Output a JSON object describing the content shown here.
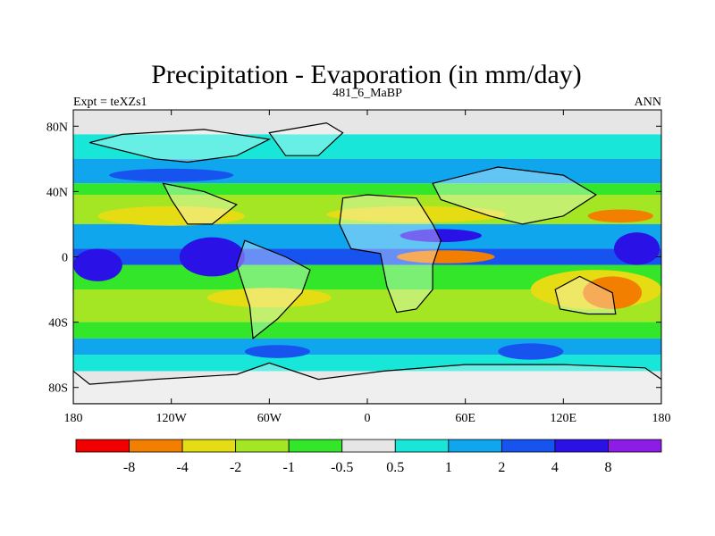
{
  "chart_data": {
    "type": "heatmap",
    "title": "Precipitation - Evaporation (in mm/day)",
    "left_label": "Expt = teXZs1",
    "center_label": "481_6_MaBP",
    "right_label": "ANN",
    "x_range": [
      -180,
      180
    ],
    "y_range": [
      -90,
      90
    ],
    "x_ticks": [
      {
        "value": -180,
        "label": "180"
      },
      {
        "value": -120,
        "label": "120W"
      },
      {
        "value": -60,
        "label": "60W"
      },
      {
        "value": 0,
        "label": "0"
      },
      {
        "value": 60,
        "label": "60E"
      },
      {
        "value": 120,
        "label": "120E"
      },
      {
        "value": 180,
        "label": "180"
      }
    ],
    "y_ticks": [
      {
        "value": 80,
        "label": "80N"
      },
      {
        "value": 40,
        "label": "40N"
      },
      {
        "value": 0,
        "label": "0"
      },
      {
        "value": -40,
        "label": "40S"
      },
      {
        "value": -80,
        "label": "80S"
      }
    ],
    "colorbar": {
      "colors": [
        "#f20000",
        "#f27f00",
        "#e6dc14",
        "#a4e623",
        "#34e62a",
        "#e6e6e6",
        "#18e6d8",
        "#0fa6ee",
        "#1753ee",
        "#2a12e6",
        "#8c1ce6"
      ],
      "labels": [
        "-8",
        "-4",
        "-2",
        "-1",
        "-0.5",
        "0.5",
        "1",
        "2",
        "4",
        "8"
      ]
    },
    "bands": [
      {
        "lat": [
          60,
          75
        ],
        "level": 6
      },
      {
        "lat": [
          45,
          60
        ],
        "level": 7
      },
      {
        "lat": [
          38,
          45
        ],
        "level": 4
      },
      {
        "lat": [
          20,
          38
        ],
        "level": 3
      },
      {
        "lat": [
          5,
          20
        ],
        "level": 7
      },
      {
        "lat": [
          -5,
          5
        ],
        "level": 8
      },
      {
        "lat": [
          -20,
          -5
        ],
        "level": 4
      },
      {
        "lat": [
          -40,
          -20
        ],
        "level": 3
      },
      {
        "lat": [
          -50,
          -40
        ],
        "level": 4
      },
      {
        "lat": [
          -60,
          -50
        ],
        "level": 7
      },
      {
        "lat": [
          -70,
          -60
        ],
        "level": 6
      }
    ],
    "patches": [
      {
        "lon": -120,
        "lat": 50,
        "rlon": 38,
        "rlat": 4,
        "level": 8
      },
      {
        "lon": -120,
        "lat": 25,
        "rlon": 45,
        "rlat": 6,
        "level": 2
      },
      {
        "lon": 30,
        "lat": 26,
        "rlon": 55,
        "rlat": 5,
        "level": 2
      },
      {
        "lon": 155,
        "lat": 25,
        "rlon": 20,
        "rlat": 4,
        "level": 1
      },
      {
        "lon": 48,
        "lat": 0,
        "rlon": 30,
        "rlat": 4,
        "level": 1
      },
      {
        "lon": 140,
        "lat": -20,
        "rlon": 40,
        "rlat": 12,
        "level": 2
      },
      {
        "lon": 150,
        "lat": -22,
        "rlon": 18,
        "rlat": 10,
        "level": 1
      },
      {
        "lon": -60,
        "lat": -25,
        "rlon": 38,
        "rlat": 6,
        "level": 2
      },
      {
        "lon": -95,
        "lat": 0,
        "rlon": 20,
        "rlat": 12,
        "level": 9
      },
      {
        "lon": -165,
        "lat": -5,
        "rlon": 15,
        "rlat": 10,
        "level": 9
      },
      {
        "lon": 45,
        "lat": 13,
        "rlon": 25,
        "rlat": 4,
        "level": 9
      },
      {
        "lon": 165,
        "lat": 5,
        "rlon": 14,
        "rlat": 10,
        "level": 9
      },
      {
        "lon": 100,
        "lat": -58,
        "rlon": 20,
        "rlat": 5,
        "level": 8
      },
      {
        "lon": -55,
        "lat": -58,
        "rlon": 20,
        "rlat": 4,
        "level": 8
      }
    ],
    "land": [
      [
        [
          -170,
          70
        ],
        [
          -130,
          60
        ],
        [
          -110,
          58
        ],
        [
          -80,
          62
        ],
        [
          -60,
          72
        ],
        [
          -100,
          78
        ],
        [
          -150,
          75
        ]
      ],
      [
        [
          -125,
          45
        ],
        [
          -100,
          40
        ],
        [
          -80,
          32
        ],
        [
          -95,
          20
        ],
        [
          -110,
          20
        ],
        [
          -120,
          35
        ]
      ],
      [
        [
          -75,
          10
        ],
        [
          -50,
          0
        ],
        [
          -35,
          -8
        ],
        [
          -40,
          -22
        ],
        [
          -55,
          -38
        ],
        [
          -70,
          -50
        ],
        [
          -72,
          -30
        ],
        [
          -80,
          -5
        ]
      ],
      [
        [
          -15,
          36
        ],
        [
          0,
          38
        ],
        [
          30,
          36
        ],
        [
          40,
          20
        ],
        [
          45,
          10
        ],
        [
          40,
          -5
        ],
        [
          40,
          -20
        ],
        [
          30,
          -32
        ],
        [
          18,
          -34
        ],
        [
          12,
          -18
        ],
        [
          8,
          2
        ],
        [
          -10,
          5
        ],
        [
          -17,
          20
        ]
      ],
      [
        [
          40,
          45
        ],
        [
          80,
          55
        ],
        [
          120,
          50
        ],
        [
          140,
          38
        ],
        [
          120,
          25
        ],
        [
          95,
          20
        ],
        [
          75,
          25
        ],
        [
          60,
          30
        ],
        [
          45,
          35
        ]
      ],
      [
        [
          115,
          -20
        ],
        [
          130,
          -12
        ],
        [
          150,
          -22
        ],
        [
          152,
          -35
        ],
        [
          135,
          -35
        ],
        [
          118,
          -32
        ]
      ],
      [
        [
          -25,
          82
        ],
        [
          -15,
          76
        ],
        [
          -30,
          62
        ],
        [
          -50,
          62
        ],
        [
          -60,
          76
        ]
      ],
      [
        [
          -180,
          -70
        ],
        [
          -180,
          -90
        ],
        [
          180,
          -90
        ],
        [
          180,
          -75
        ],
        [
          170,
          -68
        ],
        [
          120,
          -66
        ],
        [
          60,
          -66
        ],
        [
          10,
          -70
        ],
        [
          -30,
          -75
        ],
        [
          -60,
          -65
        ],
        [
          -80,
          -72
        ],
        [
          -130,
          -75
        ],
        [
          -170,
          -78
        ]
      ]
    ]
  }
}
